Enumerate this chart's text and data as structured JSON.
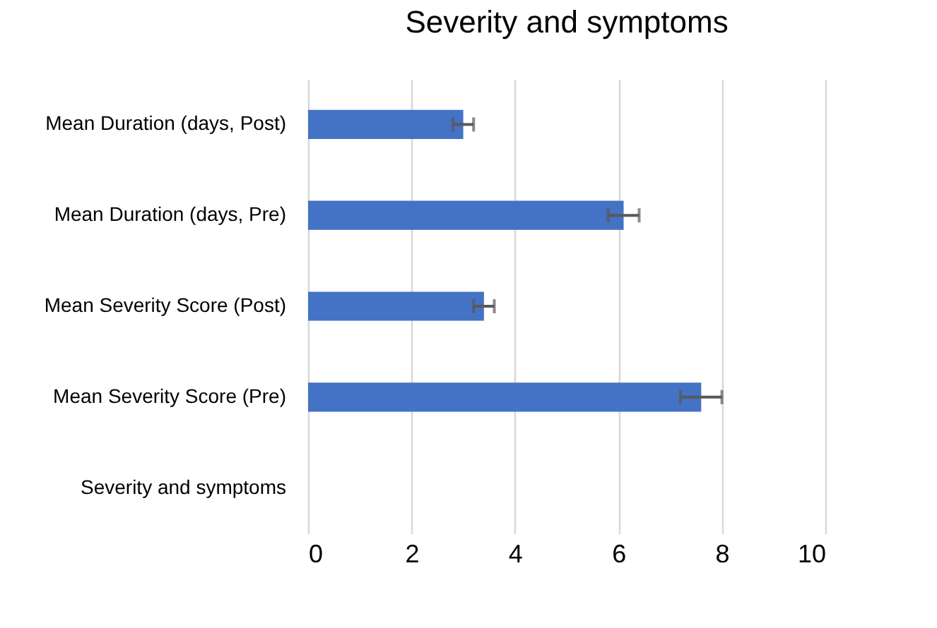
{
  "chart_data": {
    "type": "bar",
    "title": "Severity and symptoms",
    "orientation": "horizontal",
    "categories": [
      "Mean Duration (days, Post)",
      "Mean Duration (days, Pre)",
      "Mean Severity Score (Post)",
      "Mean Severity Score (Pre)",
      "Severity and symptoms"
    ],
    "values": [
      3.0,
      6.1,
      3.4,
      7.6,
      null
    ],
    "errors": [
      0.2,
      0.3,
      0.2,
      0.4,
      null
    ],
    "color": "#4472c4",
    "xlim": [
      0,
      10
    ],
    "xticks": [
      0,
      2,
      4,
      6,
      8,
      10
    ],
    "grid": "x"
  }
}
